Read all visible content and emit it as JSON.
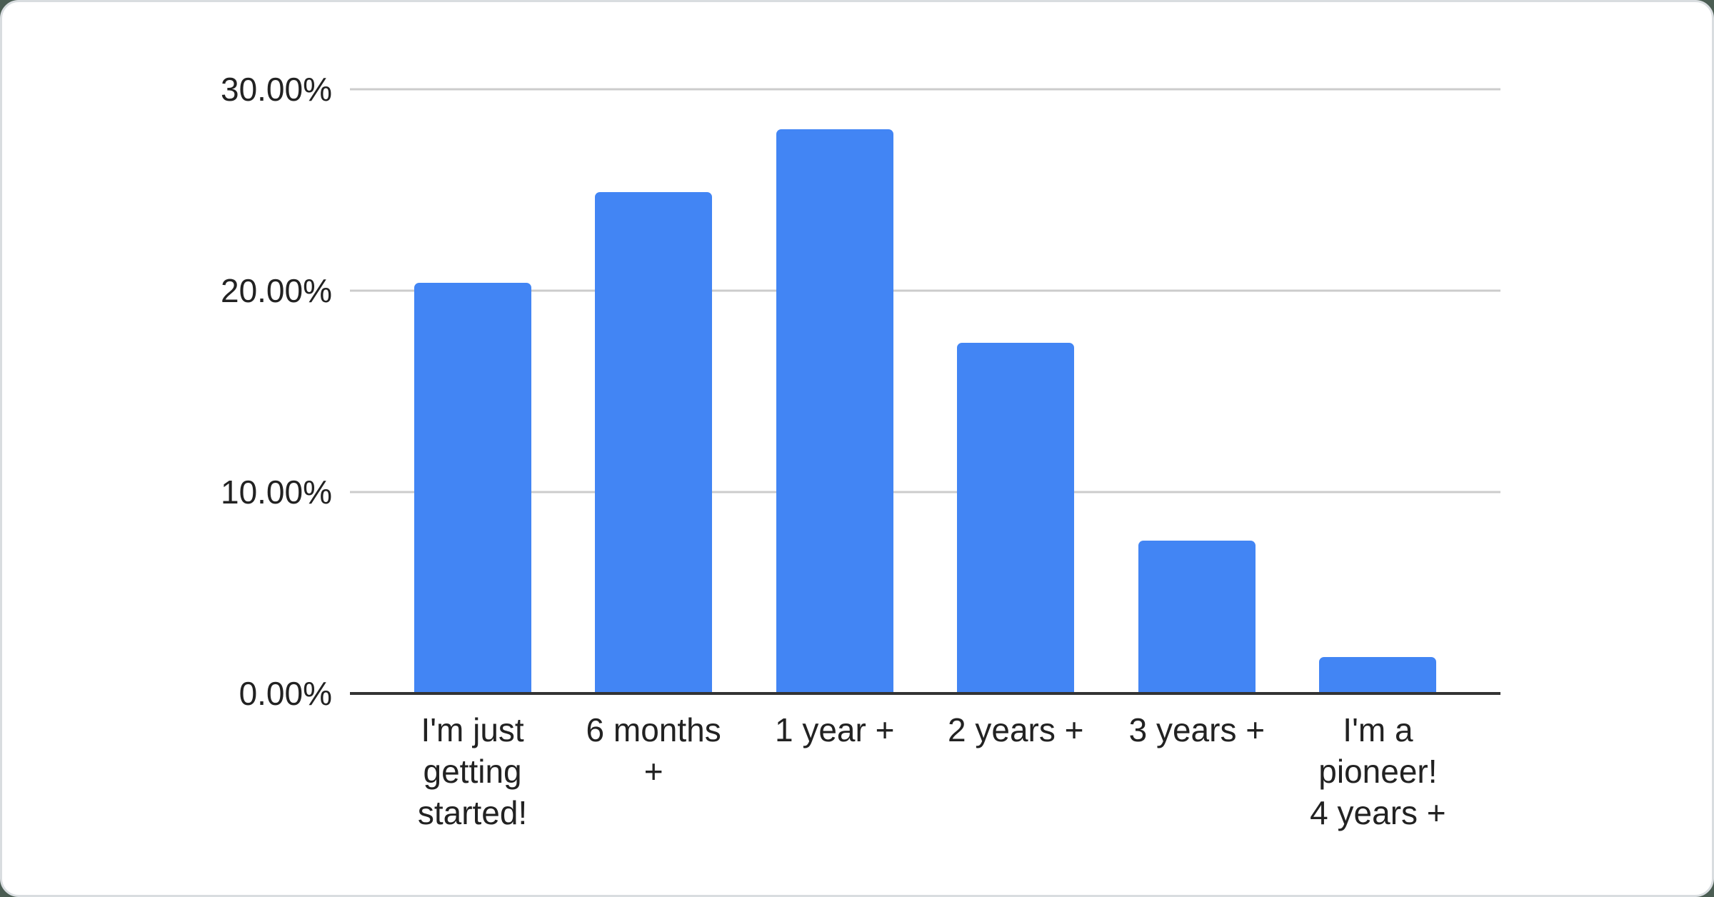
{
  "chart_data": {
    "type": "bar",
    "title": "",
    "xlabel": "",
    "ylabel": "",
    "categories": [
      "I'm just\ngetting\nstarted!",
      "6 months\n+",
      "1 year +",
      "2 years +",
      "3 years +",
      "I'm a\npioneer!\n4 years +"
    ],
    "values": [
      20.4,
      24.9,
      28.0,
      17.4,
      7.6,
      1.8
    ],
    "value_unit": "%",
    "ylim": [
      0,
      30
    ],
    "y_ticks": [
      {
        "value": 30,
        "label": "30.00%"
      },
      {
        "value": 20,
        "label": "20.00%"
      },
      {
        "value": 10,
        "label": "10.00%"
      },
      {
        "value": 0,
        "label": "0.00%"
      }
    ],
    "grid": true,
    "legend": "none",
    "colors": {
      "bar": "#4285f4",
      "gridline": "#cccccc",
      "axis_line": "#333333",
      "text": "#222222",
      "card_background": "#ffffff",
      "card_border": "#d9dde0"
    }
  }
}
